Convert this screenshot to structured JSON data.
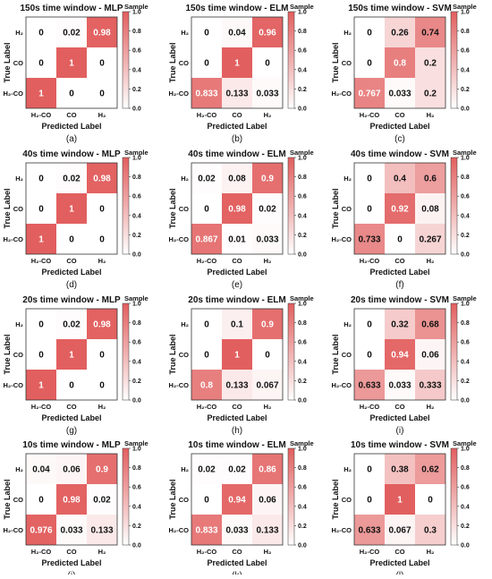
{
  "figure": {
    "colors": {
      "low": "#ffffff",
      "mid": "#f0aeae",
      "high": "#e25f5f",
      "border": "#333333"
    }
  },
  "chart_data": [
    {
      "type": "heatmap",
      "title": "150s time window - MLP",
      "xlabel": "Predicted Label",
      "ylabel": "True Label",
      "x_categories": [
        "H₂-CO",
        "CO",
        "H₂"
      ],
      "y_categories": [
        "H₂",
        "CO",
        "H₂-CO"
      ],
      "values": [
        [
          "0",
          "0.02",
          "0.98"
        ],
        [
          "0",
          "1",
          "0"
        ],
        [
          "1",
          "0",
          "0"
        ]
      ],
      "colorbar": {
        "label": "Sample",
        "range": [
          0,
          1
        ],
        "ticks": [
          "1.0",
          "0.8",
          "0.6",
          "0.4",
          "0.2",
          "0.0"
        ]
      },
      "panel_label": "(a)"
    },
    {
      "type": "heatmap",
      "title": "150s time window - ELM",
      "xlabel": "Predicted Label",
      "ylabel": "True Label",
      "x_categories": [
        "H₂-CO",
        "CO",
        "H₂"
      ],
      "y_categories": [
        "H₂",
        "CO",
        "H₂-CO"
      ],
      "values": [
        [
          "0",
          "0.04",
          "0.96"
        ],
        [
          "0",
          "1",
          "0"
        ],
        [
          "0.833",
          "0.133",
          "0.033"
        ]
      ],
      "colorbar": {
        "label": "Sample",
        "range": [
          0,
          1
        ],
        "ticks": [
          "1.0",
          "0.8",
          "0.6",
          "0.4",
          "0.2",
          "0.0"
        ]
      },
      "panel_label": "(b)"
    },
    {
      "type": "heatmap",
      "title": "150s time window - SVM",
      "xlabel": "Predicted Label",
      "ylabel": "True Label",
      "x_categories": [
        "H₂-CO",
        "CO",
        "H₂"
      ],
      "y_categories": [
        "H₂",
        "CO",
        "H₂-CO"
      ],
      "values": [
        [
          "0",
          "0.26",
          "0.74"
        ],
        [
          "0",
          "0.8",
          "0.2"
        ],
        [
          "0.767",
          "0.033",
          "0.2"
        ]
      ],
      "colorbar": {
        "label": "Sample",
        "range": [
          0,
          1
        ],
        "ticks": [
          "1.0",
          "0.8",
          "0.6",
          "0.4",
          "0.2",
          "0.0"
        ]
      },
      "panel_label": "(c)"
    },
    {
      "type": "heatmap",
      "title": "40s time window - MLP",
      "xlabel": "Predicted Label",
      "ylabel": "True Label",
      "x_categories": [
        "H₂-CO",
        "CO",
        "H₂"
      ],
      "y_categories": [
        "H₂",
        "CO",
        "H₂-CO"
      ],
      "values": [
        [
          "0",
          "0.02",
          "0.98"
        ],
        [
          "0",
          "1",
          "0"
        ],
        [
          "1",
          "0",
          "0"
        ]
      ],
      "colorbar": {
        "label": "Sample",
        "range": [
          0,
          1
        ],
        "ticks": [
          "1.0",
          "0.8",
          "0.6",
          "0.4",
          "0.2",
          "0.0"
        ]
      },
      "panel_label": "(d)"
    },
    {
      "type": "heatmap",
      "title": "40s time window - ELM",
      "xlabel": "Predicted Label",
      "ylabel": "True Label",
      "x_categories": [
        "H₂-CO",
        "CO",
        "H₂"
      ],
      "y_categories": [
        "H₂",
        "CO",
        "H₂-CO"
      ],
      "values": [
        [
          "0.02",
          "0.08",
          "0.9"
        ],
        [
          "0",
          "0.98",
          "0.02"
        ],
        [
          "0.867",
          "0.01",
          "0.033"
        ]
      ],
      "colorbar": {
        "label": "Sample",
        "range": [
          0,
          1
        ],
        "ticks": [
          "1.0",
          "0.8",
          "0.6",
          "0.4",
          "0.2",
          "0.0"
        ]
      },
      "panel_label": "(e)"
    },
    {
      "type": "heatmap",
      "title": "40s time window - SVM",
      "xlabel": "Predicted Label",
      "ylabel": "True Label",
      "x_categories": [
        "H₂-CO",
        "CO",
        "H₂"
      ],
      "y_categories": [
        "H₂",
        "CO",
        "H₂-CO"
      ],
      "values": [
        [
          "0",
          "0.4",
          "0.6"
        ],
        [
          "0",
          "0.92",
          "0.08"
        ],
        [
          "0.733",
          "0",
          "0.267"
        ]
      ],
      "colorbar": {
        "label": "Sample",
        "range": [
          0,
          1
        ],
        "ticks": [
          "1.0",
          "0.8",
          "0.6",
          "0.4",
          "0.2",
          "0.0"
        ]
      },
      "panel_label": "(f)"
    },
    {
      "type": "heatmap",
      "title": "20s time window - MLP",
      "xlabel": "Predicted Label",
      "ylabel": "True Label",
      "x_categories": [
        "H₂-CO",
        "CO",
        "H₂"
      ],
      "y_categories": [
        "H₂",
        "CO",
        "H₂-CO"
      ],
      "values": [
        [
          "0",
          "0.02",
          "0.98"
        ],
        [
          "0",
          "1",
          "0"
        ],
        [
          "1",
          "0",
          "0"
        ]
      ],
      "colorbar": {
        "label": "Sample",
        "range": [
          0,
          1
        ],
        "ticks": [
          "1.0",
          "0.8",
          "0.6",
          "0.4",
          "0.2",
          "0.0"
        ]
      },
      "panel_label": "(g)"
    },
    {
      "type": "heatmap",
      "title": "20s time window - ELM",
      "xlabel": "Predicted Label",
      "ylabel": "True Label",
      "x_categories": [
        "H₂-CO",
        "CO",
        "H₂"
      ],
      "y_categories": [
        "H₂",
        "CO",
        "H₂-CO"
      ],
      "values": [
        [
          "0",
          "0.1",
          "0.9"
        ],
        [
          "0",
          "1",
          "0"
        ],
        [
          "0.8",
          "0.133",
          "0.067"
        ]
      ],
      "colorbar": {
        "label": "Sample",
        "range": [
          0,
          1
        ],
        "ticks": [
          "1.0",
          "0.8",
          "0.6",
          "0.4",
          "0.2",
          "0.0"
        ]
      },
      "panel_label": "(h)"
    },
    {
      "type": "heatmap",
      "title": "20s time window - SVM",
      "xlabel": "Predicted Label",
      "ylabel": "True Label",
      "x_categories": [
        "H₂-CO",
        "CO",
        "H₂"
      ],
      "y_categories": [
        "H₂",
        "CO",
        "H₂-CO"
      ],
      "values": [
        [
          "0",
          "0.32",
          "0.68"
        ],
        [
          "0",
          "0.94",
          "0.06"
        ],
        [
          "0.633",
          "0.033",
          "0.333"
        ]
      ],
      "colorbar": {
        "label": "Sample",
        "range": [
          0,
          1
        ],
        "ticks": [
          "1.0",
          "0.8",
          "0.6",
          "0.4",
          "0.2",
          "0.0"
        ]
      },
      "panel_label": "(i)"
    },
    {
      "type": "heatmap",
      "title": "10s time window - MLP",
      "xlabel": "Predicted Label",
      "ylabel": "True Label",
      "x_categories": [
        "H₂-CO",
        "CO",
        "H₂"
      ],
      "y_categories": [
        "H₂",
        "CO",
        "H₂-CO"
      ],
      "values": [
        [
          "0.04",
          "0.06",
          "0.9"
        ],
        [
          "0",
          "0.98",
          "0.02"
        ],
        [
          "0.976",
          "0.033",
          "0.133"
        ]
      ],
      "colorbar": {
        "label": "Sample",
        "range": [
          0,
          1
        ],
        "ticks": [
          "1.0",
          "0.8",
          "0.6",
          "0.4",
          "0.2",
          "0.0"
        ]
      },
      "panel_label": "(j)"
    },
    {
      "type": "heatmap",
      "title": "10s time window - ELM",
      "xlabel": "Predicted Label",
      "ylabel": "True Label",
      "x_categories": [
        "H₂-CO",
        "CO",
        "H₂"
      ],
      "y_categories": [
        "H₂",
        "CO",
        "H₂-CO"
      ],
      "values": [
        [
          "0.02",
          "0.02",
          "0.86"
        ],
        [
          "0",
          "0.94",
          "0.06"
        ],
        [
          "0.833",
          "0.033",
          "0.133"
        ]
      ],
      "colorbar": {
        "label": "Sample",
        "range": [
          0,
          1
        ],
        "ticks": [
          "1.0",
          "0.8",
          "0.6",
          "0.4",
          "0.2",
          "0.0"
        ]
      },
      "panel_label": "(k)"
    },
    {
      "type": "heatmap",
      "title": "10s time window - SVM",
      "xlabel": "Predicted Label",
      "ylabel": "True Label",
      "x_categories": [
        "H₂-CO",
        "CO",
        "H₂"
      ],
      "y_categories": [
        "H₂",
        "CO",
        "H₂-CO"
      ],
      "values": [
        [
          "0",
          "0.38",
          "0.62"
        ],
        [
          "0",
          "1",
          "0"
        ],
        [
          "0.633",
          "0.067",
          "0.3"
        ]
      ],
      "colorbar": {
        "label": "Sample",
        "range": [
          0,
          1
        ],
        "ticks": [
          "1.0",
          "0.8",
          "0.6",
          "0.4",
          "0.2",
          "0.0"
        ]
      },
      "panel_label": "(l)"
    }
  ]
}
